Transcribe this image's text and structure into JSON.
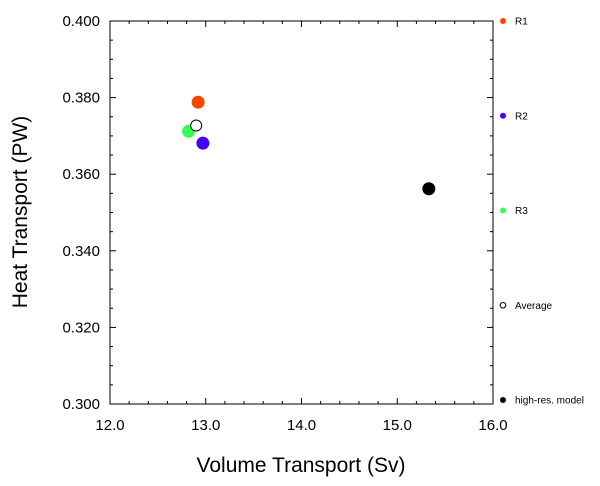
{
  "chart_data": {
    "type": "scatter",
    "title": "",
    "xlabel": "Volume Transport (Sv)",
    "ylabel": "Heat Transport (PW)",
    "xlim": [
      12.0,
      16.0
    ],
    "ylim": [
      0.3,
      0.4
    ],
    "xticks": [
      "12.0",
      "13.0",
      "14.0",
      "15.0",
      "16.0"
    ],
    "yticks": [
      "0.300",
      "0.320",
      "0.340",
      "0.360",
      "0.380",
      "0.400"
    ],
    "grid": false,
    "legend_position": "right",
    "series": [
      {
        "name": "R1",
        "color": "#ff4500",
        "marker": "filled-circle",
        "points": [
          {
            "x": 12.92,
            "y": 0.3788
          }
        ]
      },
      {
        "name": "R2",
        "color": "#4400ff",
        "marker": "filled-circle",
        "points": [
          {
            "x": 12.97,
            "y": 0.3681
          }
        ]
      },
      {
        "name": "R3",
        "color": "#33ff55",
        "marker": "filled-circle",
        "points": [
          {
            "x": 12.82,
            "y": 0.3712
          }
        ]
      },
      {
        "name": "Average",
        "color": "#000000",
        "marker": "open-circle",
        "points": [
          {
            "x": 12.9,
            "y": 0.3727
          }
        ]
      },
      {
        "name": "high-res. model",
        "color": "#000000",
        "marker": "filled-circle",
        "points": [
          {
            "x": 15.33,
            "y": 0.3562
          }
        ]
      }
    ]
  }
}
